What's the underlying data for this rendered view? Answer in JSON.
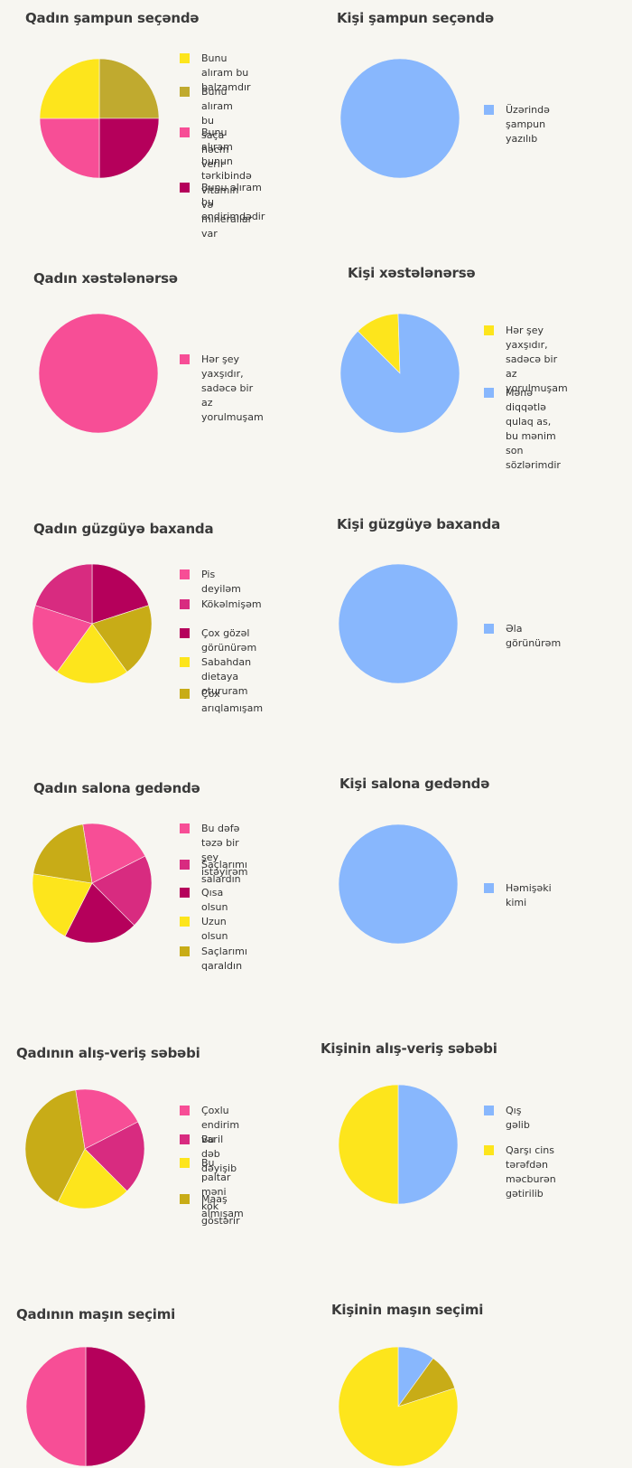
{
  "colors": {
    "pink": "#f74e96",
    "magenta": "#d82b80",
    "crimson": "#b5005b",
    "yellow": "#fde51c",
    "olive": "#c8ac17",
    "olive_light": "#c0aa2f",
    "blue": "#88b7fd"
  },
  "chart_data": [
    {
      "type": "pie",
      "title": "Qadın şampun seçəndə",
      "series": [
        {
          "label": "Bunu alıram bu balzamdır",
          "value": 25,
          "color": "#c0aa2f"
        },
        {
          "label": "Bunu alıram bu saça\nhəcm verir",
          "value": 25,
          "color": "#c0aa2f"
        },
        {
          "label": "Bunu alıram bunun\ntərkibində vitamin və\nminerallar var",
          "value": 25,
          "color": "#f74e96"
        },
        {
          "label": "Bunu alıram bu\nendirimdədir",
          "value": 25,
          "color": "#b5005b"
        }
      ],
      "slices": [
        {
          "value": 25,
          "color": "#c0aa2f"
        },
        {
          "value": 25,
          "color": "#b5005b"
        },
        {
          "value": 25,
          "color": "#f74e96"
        },
        {
          "value": 25,
          "color": "#fde51c"
        }
      ],
      "legend_colors": [
        "#fde51c",
        "#c0aa2f",
        "#f74e96",
        "#b5005b"
      ]
    },
    {
      "type": "pie",
      "title": "Kişi şampun seçəndə",
      "series": [
        {
          "label": "Üzərində şampun\nyazılıb",
          "value": 100,
          "color": "#88b7fd"
        }
      ]
    },
    {
      "type": "pie",
      "title": "Qadın xəstələnərsə",
      "series": [
        {
          "label": "Hər şey yaxşıdır,\nsadəcə bir az\nyorulmuşam",
          "value": 100,
          "color": "#f74e96"
        }
      ]
    },
    {
      "type": "pie",
      "title": "Kişi xəstələnərsə",
      "series": [
        {
          "label": "Hər şey yaxşıdır,\nsadəcə bir az\nyorulmuşam",
          "value": 12,
          "color": "#fde51c"
        },
        {
          "label": "Mənə diqqətlə qulaq as,\nbu mənim son\nsözlərimdir",
          "value": 88,
          "color": "#88b7fd"
        }
      ],
      "start": -0.125
    },
    {
      "type": "pie",
      "title": "Qadın güzgüyə baxanda",
      "series": [
        {
          "label": "Pis deyiləm",
          "value": 20,
          "color": "#f74e96"
        },
        {
          "label": "Kökəlmişəm",
          "value": 20,
          "color": "#d82b80"
        },
        {
          "label": "Çox gözəl görünürəm",
          "value": 20,
          "color": "#b5005b"
        },
        {
          "label": "Sabahdan dietaya oturueven",
          "value": 20,
          "color": "#fde51c"
        },
        {
          "label": "Çox arıqlamışam",
          "value": 20,
          "color": "#c8ac17"
        }
      ],
      "slices": [
        {
          "value": 20,
          "color": "#b5005b"
        },
        {
          "value": 20,
          "color": "#c8ac17"
        },
        {
          "value": 20,
          "color": "#fde51c"
        },
        {
          "value": 20,
          "color": "#f74e96"
        },
        {
          "value": 20,
          "color": "#d82b80"
        }
      ]
    },
    {
      "type": "pie",
      "title": "Kişi güzgüyə baxanda",
      "series": [
        {
          "label": "Əla görünürəm",
          "value": 100,
          "color": "#88b7fd"
        }
      ]
    },
    {
      "type": "pie",
      "title": "Qadın salona gedəndə",
      "series": [
        {
          "label": "Bu dəfə təzə bir\nşey istəyirəm",
          "value": 20,
          "color": "#f74e96"
        },
        {
          "label": "Saçlarımı salardın",
          "value": 20,
          "color": "#d82b80"
        },
        {
          "label": "Qısa olsun",
          "value": 20,
          "color": "#b5005b"
        },
        {
          "label": "Uzun olsun",
          "value": 20,
          "color": "#fde51c"
        },
        {
          "label": "Saçlarımı qaraldın",
          "value": 20,
          "color": "#c8ac17"
        }
      ],
      "start": -0.025
    },
    {
      "type": "pie",
      "title": "Kişi salona gedəndə",
      "series": [
        {
          "label": "Həmişəki kimi",
          "value": 100,
          "color": "#88b7fd"
        }
      ]
    },
    {
      "type": "pie",
      "title": "Qadının alış-veriş səbəbi",
      "series": [
        {
          "label": "Çoxlu endirim var",
          "value": 20,
          "color": "#f74e96"
        },
        {
          "label": "Bu il dəb dəyişib",
          "value": 20,
          "color": "#d82b80"
        },
        {
          "label": "Bu paltar məni\nkök göstərir",
          "value": 20,
          "color": "#fde51c"
        },
        {
          "label": "Maaş almışam",
          "value": 40,
          "color": "#c8ac17"
        }
      ],
      "start": -0.025
    },
    {
      "type": "pie",
      "title": "Kişinin alış-veriş səbəbi",
      "series": [
        {
          "label": "Qış gəlib",
          "value": 50,
          "color": "#88b7fd"
        },
        {
          "label": "Qarşı cins tərəfdən\nməcburən gətirilib",
          "value": 50,
          "color": "#fde51c"
        }
      ]
    },
    {
      "type": "pie",
      "title": "Qadının maşın seçimi",
      "series": [
        {
          "label": "",
          "value": 50,
          "color": "#b5005b"
        },
        {
          "label": "",
          "value": 50,
          "color": "#f74e96"
        }
      ]
    },
    {
      "type": "pie",
      "title": "Kişinin maşın seçimi",
      "series": [
        {
          "label": "",
          "value": 10,
          "color": "#88b7fd"
        },
        {
          "label": "",
          "value": 10,
          "color": "#c8ac17"
        },
        {
          "label": "",
          "value": 80,
          "color": "#fde51c"
        }
      ]
    }
  ]
}
